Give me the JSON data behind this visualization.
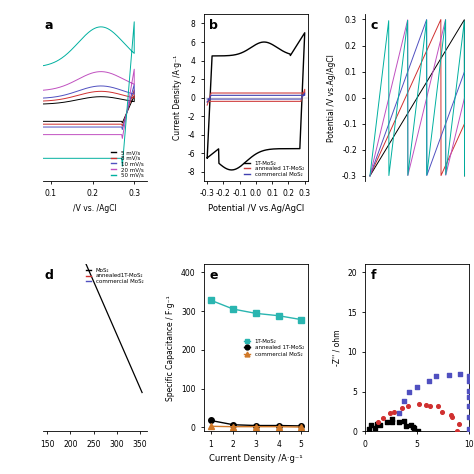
{
  "panel_b": {
    "label": "b",
    "xlabel": "Potential /V vs.Ag/AgCl",
    "ylabel": "Current Density /A·g⁻¹",
    "xlim": [
      -0.32,
      0.32
    ],
    "ylim": [
      -9,
      9
    ],
    "yticks": [
      -8,
      -6,
      -4,
      -2,
      0,
      2,
      4,
      6,
      8
    ],
    "xticks": [
      -0.3,
      -0.2,
      -0.1,
      0.0,
      0.1,
      0.2,
      0.3
    ],
    "legend": [
      "1T-MoS₂",
      "annealed 1T-MoS₂",
      "commercial MoS₂"
    ],
    "colors": [
      "#000000",
      "#d04040",
      "#4040b0"
    ]
  },
  "panel_e": {
    "label": "e",
    "xlabel": "Current Density /A·g⁻¹",
    "ylabel": "Specific Capacitance / F·g⁻¹",
    "xlim": [
      0.7,
      5.3
    ],
    "ylim": [
      -10,
      420
    ],
    "yticks": [
      0,
      100,
      200,
      300,
      400
    ],
    "xticks": [
      1,
      2,
      3,
      4,
      5
    ],
    "legend": [
      "1T-MoS₂",
      "annealed 1T-MoS₂",
      "commercial MoS₂"
    ],
    "colors": [
      "#2ab5b0",
      "#000000",
      "#d07828"
    ],
    "markers": [
      "s",
      "o",
      "^"
    ],
    "x": [
      1,
      2,
      3,
      4,
      5
    ],
    "y_1T": [
      328,
      305,
      294,
      288,
      278
    ],
    "y_annealed": [
      18,
      7,
      5,
      5,
      4
    ],
    "y_commercial": [
      3,
      2,
      2,
      2,
      1
    ]
  },
  "panel_a": {
    "label": "a",
    "xlabel": "/V vs. /AgCl",
    "legend": [
      "5 mV/s",
      "8 mV/s",
      "10 mV/s",
      "20 mV/s",
      "50 mV/s"
    ],
    "colors": [
      "#000000",
      "#d03030",
      "#5050c0",
      "#c050c0",
      "#00b0a0"
    ],
    "xlim": [
      0.08,
      0.33
    ],
    "xticks": [
      0.1,
      0.2,
      0.3
    ]
  },
  "panel_c": {
    "label": "c",
    "ylabel": "Potential /V vs.Ag/AgCl",
    "ylim": [
      -0.32,
      0.32
    ],
    "yticks": [
      -0.3,
      -0.2,
      -0.1,
      0.0,
      0.1,
      0.2,
      0.3
    ],
    "colors": [
      "#000000",
      "#d03030",
      "#5050c0",
      "#c050c0",
      "#00b0a0"
    ]
  },
  "panel_d": {
    "label": "d",
    "xticks": [
      150,
      200,
      250,
      300,
      350
    ],
    "xlim": [
      140,
      365
    ],
    "legend": [
      "MoS₂",
      "annealed1T-MoS₂",
      "commercial MoS₂"
    ],
    "colors": [
      "#000000",
      "#d03030",
      "#5050c0"
    ]
  },
  "panel_f": {
    "label": "f",
    "ylabel": "-Z'' / ohm",
    "xlabel": "",
    "ylim": [
      0,
      21
    ],
    "xlim": [
      0,
      10
    ],
    "yticks": [
      0,
      5,
      10,
      15,
      20
    ],
    "xticks": [
      0,
      5,
      10
    ],
    "colors": [
      "#000000",
      "#d03030",
      "#5050c0"
    ]
  }
}
